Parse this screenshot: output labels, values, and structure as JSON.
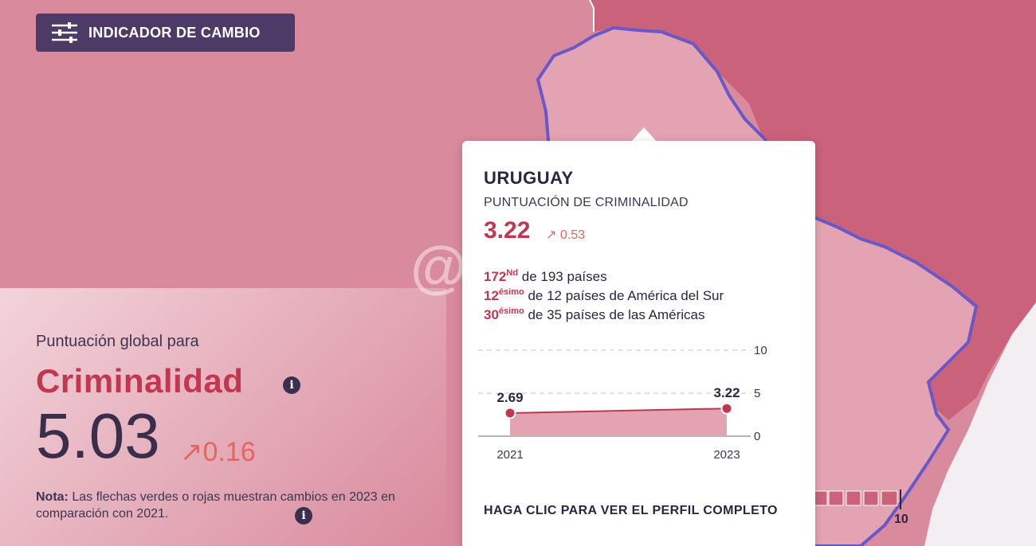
{
  "header": {
    "change_indicator_label": "INDICADOR DE CAMBIO",
    "change_indicator_icon": "sliders-icon"
  },
  "global": {
    "label": "Puntuación global para",
    "title": "Criminalidad",
    "score": "5.03",
    "change": "↗0.16",
    "note_bold": "Nota:",
    "note_text": " Las flechas verdes o rojas muestran cambios en 2023 en comparación con 2021.",
    "info_icon": "i"
  },
  "tooltip": {
    "country": "URUGUAY",
    "metric": "PUNTUACIÓN DE CRIMINALIDAD",
    "score": "3.22",
    "change": "↗ 0.53",
    "ranks": [
      {
        "num": "172",
        "sup": "Nd",
        "text": " de 193 países"
      },
      {
        "num": "12",
        "sup": "ésimo",
        "text": " de 12 países de América del Sur"
      },
      {
        "num": "30",
        "sup": "ésimo",
        "text": " de 35 países de las Américas"
      }
    ],
    "cta": "HAGA CLIC PARA VER EL PERFIL COMPLETO"
  },
  "chart_data": {
    "type": "area",
    "x": [
      "2021",
      "2023"
    ],
    "values": [
      2.69,
      3.22
    ],
    "value_labels": [
      "2.69",
      "3.22"
    ],
    "ylim": [
      0,
      10
    ],
    "y_ticks": [
      "10",
      "5",
      "0"
    ],
    "grid": true
  },
  "legend": {
    "max_label": "10"
  },
  "watermark": "@gasor",
  "colors": {
    "map_base": "#d98a9c",
    "region_dark": "#c9627a",
    "uruguay_fill": "#e3a3b2",
    "border": "#6a58c8",
    "accent": "#c0374e",
    "change_up": "#e3655e",
    "button_bg": "#4e3a66"
  }
}
